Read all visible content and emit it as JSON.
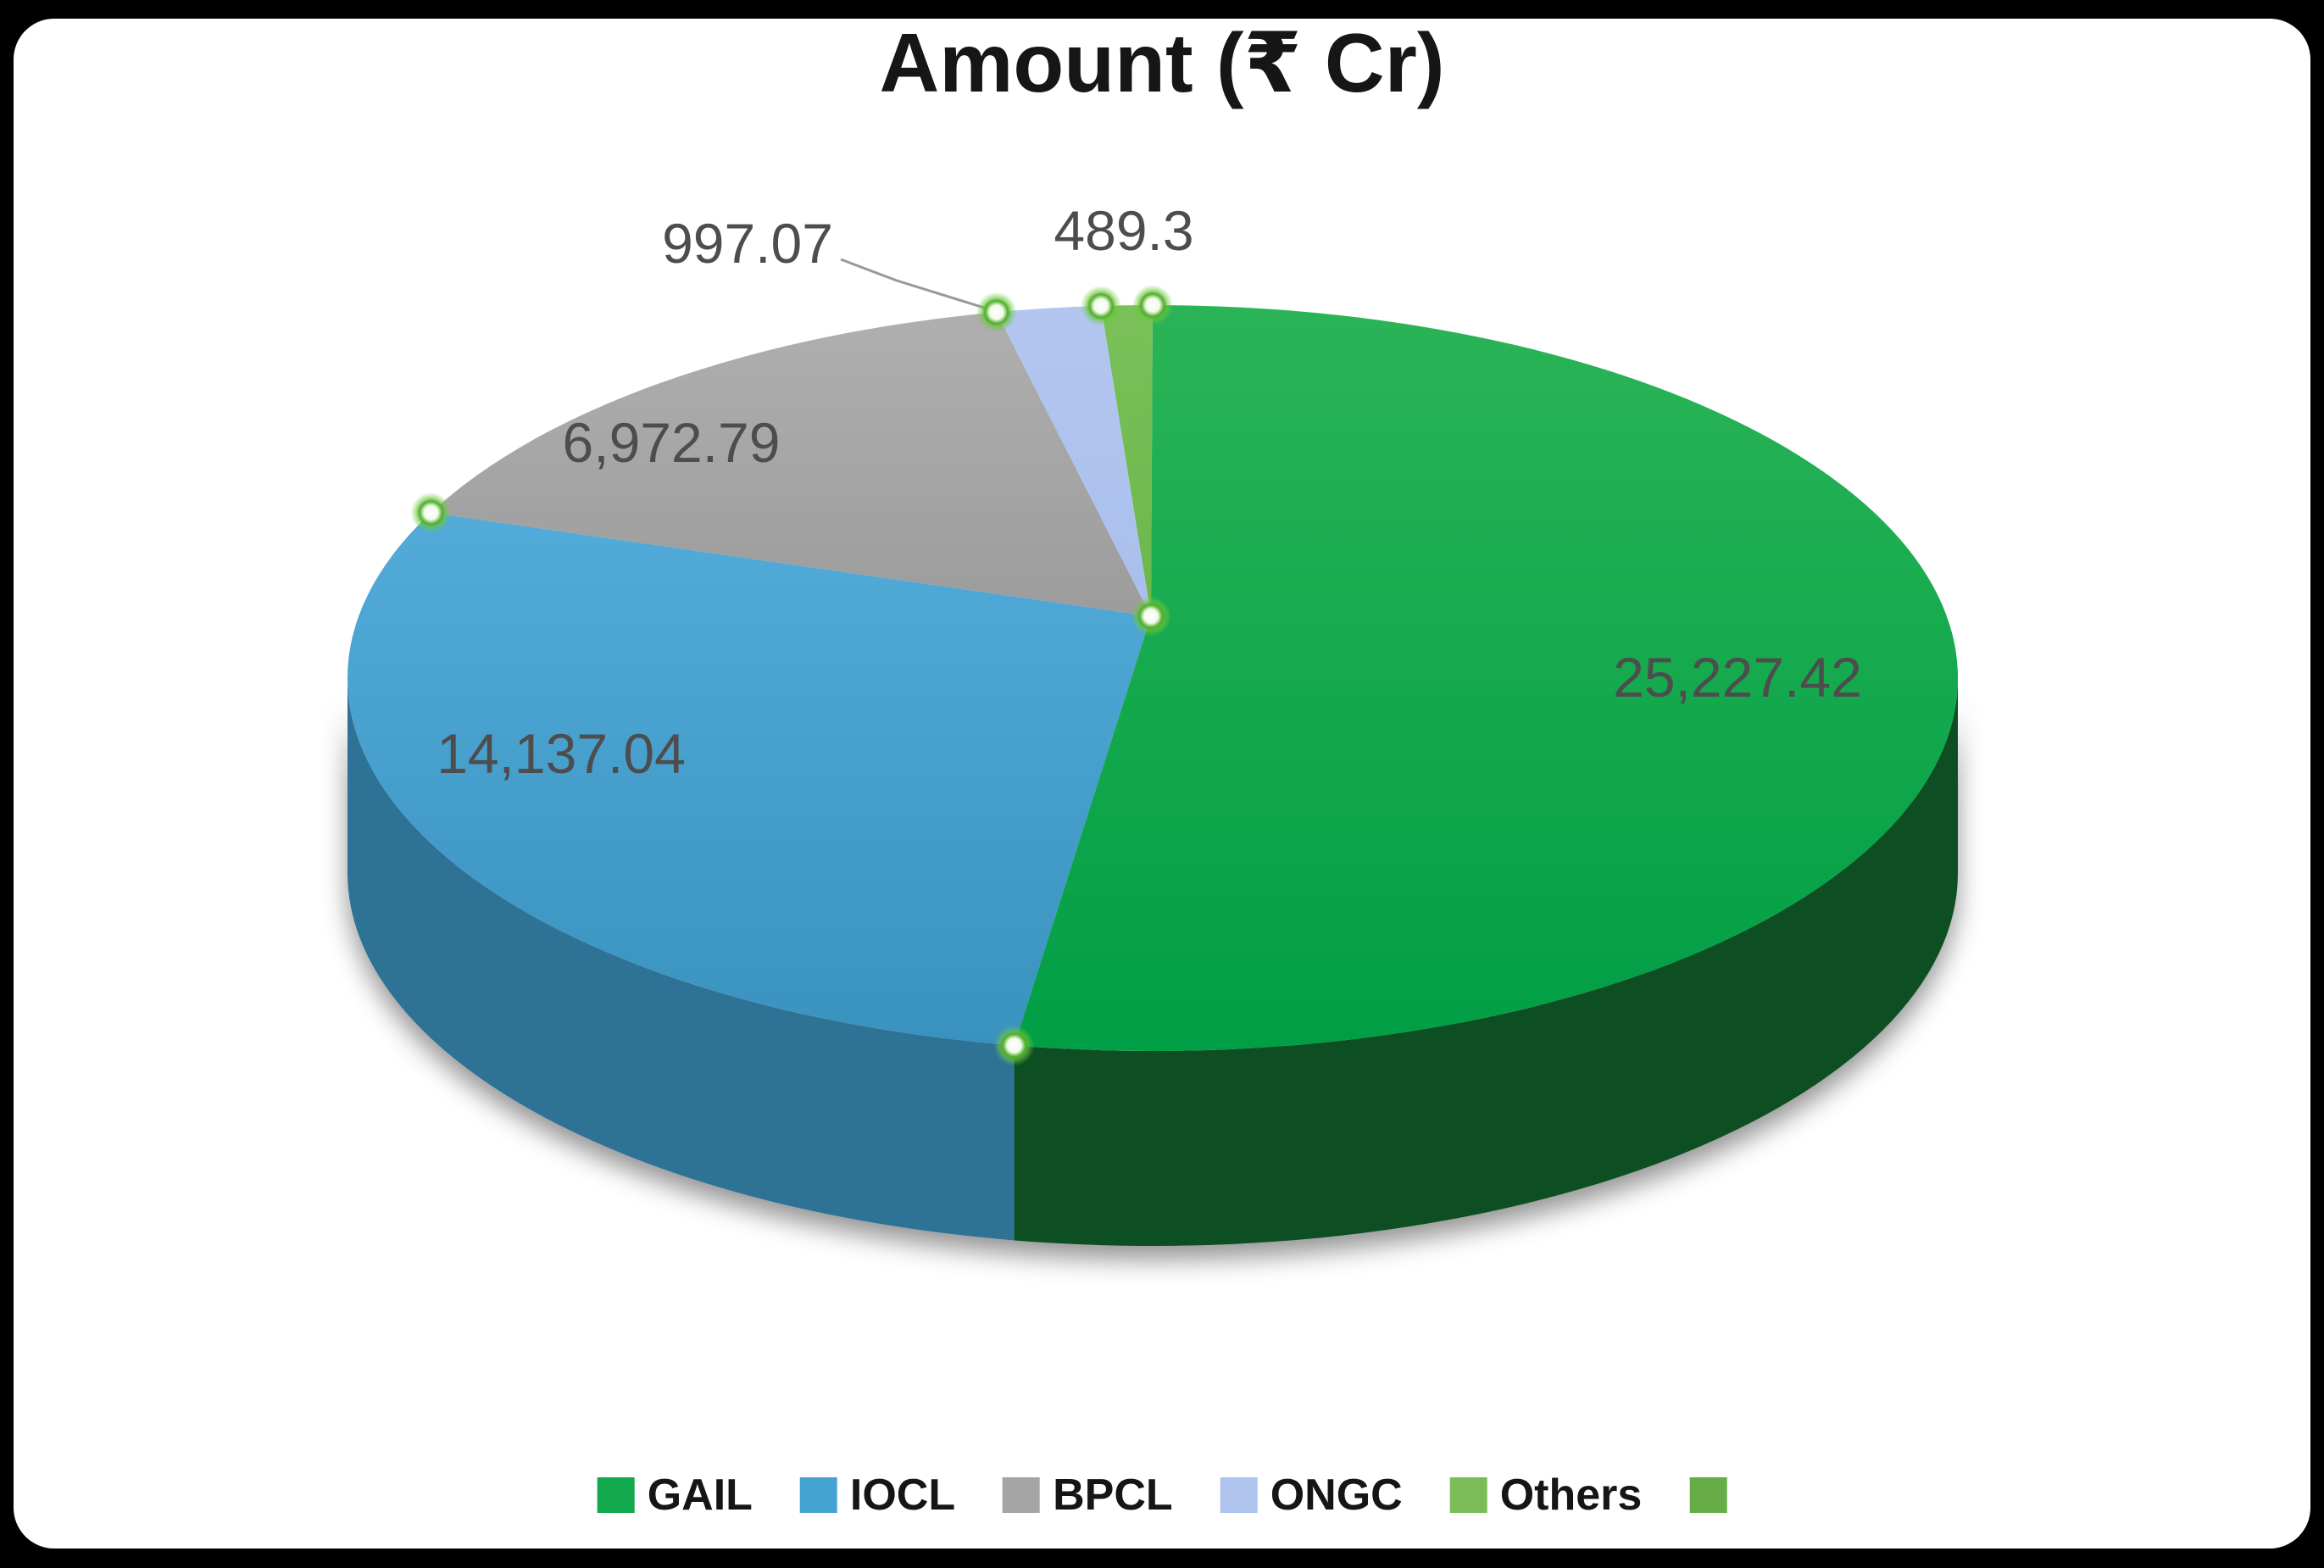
{
  "frame": {
    "background": "#000000",
    "panel_background": "#ffffff"
  },
  "chart_data": {
    "type": "pie",
    "style": "3d-pie",
    "title": "Amount (₹ Cr)",
    "categories": [
      "GAIL",
      "IOCL",
      "BPCL",
      "ONGC",
      "Others"
    ],
    "values": [
      25227.42,
      14137.04,
      6972.79,
      997.07,
      489.3
    ],
    "data_labels": [
      "25,227.42",
      "14,137.04",
      "6,972.79",
      "997.07",
      "489.3"
    ],
    "data_label_color": "#4d4d4d",
    "slice_colors_top": [
      [
        "#2bb457",
        "#009e45"
      ],
      [
        "#52abd8",
        "#3a92bf"
      ],
      [
        "#afafaf",
        "#9c9c9c"
      ],
      [
        "#b3c6f0",
        "#a9bfec"
      ],
      [
        "#79c158",
        "#6cb64c"
      ]
    ],
    "slice_colors_side": [
      "#0a5020",
      "#2e7396"
    ],
    "selection_handle_color": "#4fae2a",
    "leader_line_color": "#999999",
    "legend": {
      "position": "bottom",
      "entries": [
        {
          "label": "GAIL",
          "color": "#12a94f"
        },
        {
          "label": "IOCL",
          "color": "#44a3d3"
        },
        {
          "label": "BPCL",
          "color": "#a5a5a5"
        },
        {
          "label": "ONGC",
          "color": "#aec3ee"
        },
        {
          "label": "Others",
          "color": "#7abd58"
        },
        {
          "label": "",
          "color": "#66ac47"
        }
      ]
    }
  }
}
